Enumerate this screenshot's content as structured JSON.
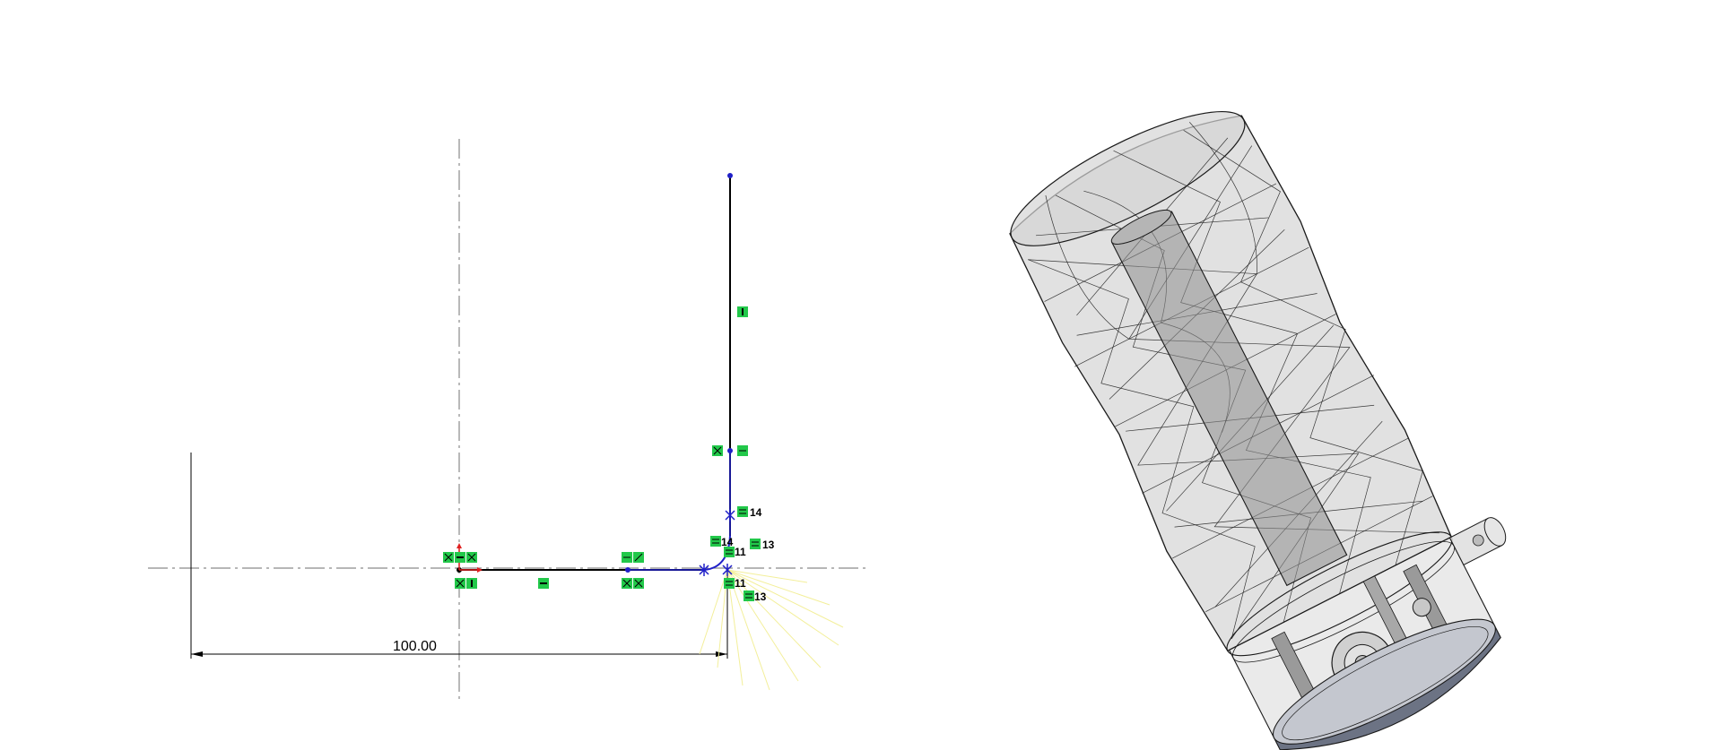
{
  "sketch": {
    "dimension_value": "100.00",
    "relation_numbers": [
      "14",
      "13",
      "11",
      "14",
      "11",
      "13"
    ]
  },
  "colors": {
    "sketch_line": "#000000",
    "sketch_curve": "#2020c8",
    "relation_green": "#22c84a",
    "centerline": "#8a8a8a",
    "fillet_hint": "#f3ef9a",
    "model_body": "#c9c9c9",
    "model_edge": "#1a1a1a",
    "cap_color": "#6c7384"
  }
}
